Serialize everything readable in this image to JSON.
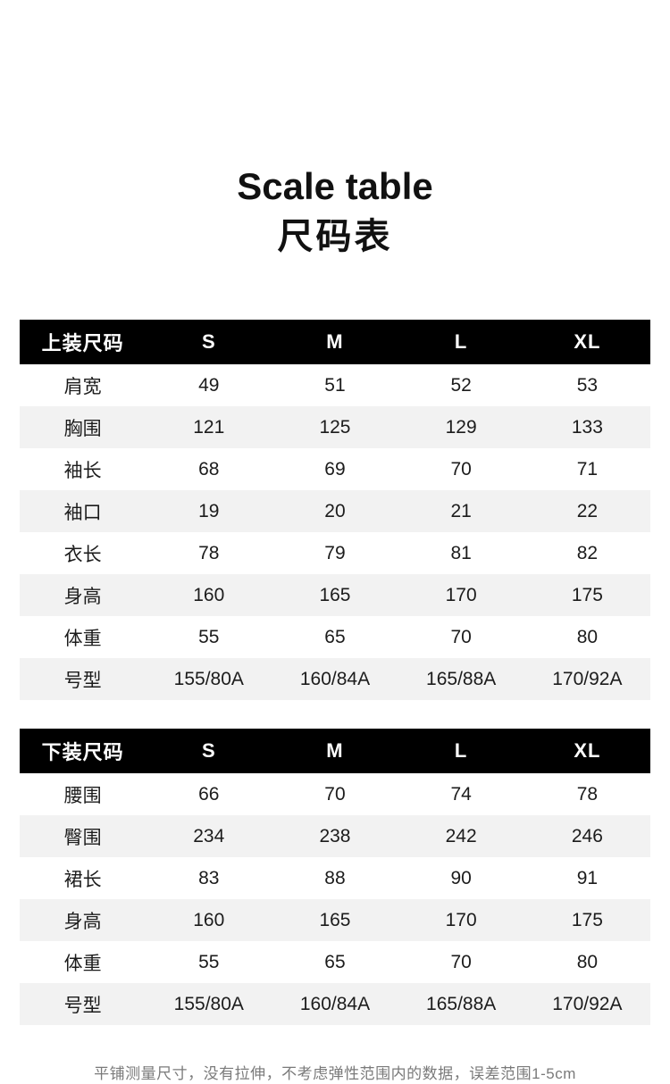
{
  "titles": {
    "en": "Scale table",
    "zh": "尺码表"
  },
  "tables": [
    {
      "header": [
        "上装尺码",
        "S",
        "M",
        "L",
        "XL"
      ],
      "rows": [
        [
          "肩宽",
          "49",
          "51",
          "52",
          "53"
        ],
        [
          "胸围",
          "121",
          "125",
          "129",
          "133"
        ],
        [
          "袖长",
          "68",
          "69",
          "70",
          "71"
        ],
        [
          "袖口",
          "19",
          "20",
          "21",
          "22"
        ],
        [
          "衣长",
          "78",
          "79",
          "81",
          "82"
        ],
        [
          "身高",
          "160",
          "165",
          "170",
          "175"
        ],
        [
          "体重",
          "55",
          "65",
          "70",
          "80"
        ],
        [
          "号型",
          "155/80A",
          "160/84A",
          "165/88A",
          "170/92A"
        ]
      ]
    },
    {
      "header": [
        "下装尺码",
        "S",
        "M",
        "L",
        "XL"
      ],
      "rows": [
        [
          "腰围",
          "66",
          "70",
          "74",
          "78"
        ],
        [
          "臀围",
          "234",
          "238",
          "242",
          "246"
        ],
        [
          "裙长",
          "83",
          "88",
          "90",
          "91"
        ],
        [
          "身高",
          "160",
          "165",
          "170",
          "175"
        ],
        [
          "体重",
          "55",
          "65",
          "70",
          "80"
        ],
        [
          "号型",
          "155/80A",
          "160/84A",
          "165/88A",
          "170/92A"
        ]
      ]
    }
  ],
  "footer": {
    "note": "平铺测量尺寸，没有拉伸，不考虑弹性范围内的数据，误差范围1-5cm"
  },
  "colors": {
    "header_bg": "#000000",
    "header_text": "#ffffff",
    "row_alt_bg": "#f2f2f2",
    "body_text": "#1c1c1c",
    "footer_text": "#7a7a7a"
  }
}
